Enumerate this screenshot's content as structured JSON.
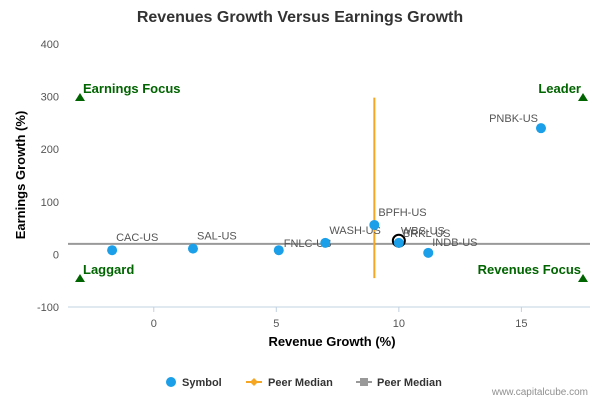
{
  "chart_data": {
    "type": "scatter",
    "title": "Revenues Growth Versus Earnings Growth",
    "xlabel": "Revenue Growth (%)",
    "ylabel": "Earnings Growth (%)",
    "xlim": [
      -3.5,
      17.8
    ],
    "ylim": [
      -100,
      400
    ],
    "xticks": [
      0,
      5,
      10,
      15
    ],
    "yticks": [
      -100,
      0,
      100,
      200,
      300,
      400
    ],
    "grid": false,
    "legend_position": "bottom",
    "series": [
      {
        "name": "Symbol",
        "color": "#1a9fe8",
        "points": [
          {
            "label": "CAC-US",
            "x": -1.7,
            "y": 8
          },
          {
            "label": "SAL-US",
            "x": 1.6,
            "y": 11
          },
          {
            "label": "FNLC-US",
            "x": 5.1,
            "y": 8
          },
          {
            "label": "WASH-US",
            "x": 7.0,
            "y": 22
          },
          {
            "label": "BPFH-US",
            "x": 9.0,
            "y": 56
          },
          {
            "label": "WBS-US",
            "x": 10.0,
            "y": 26,
            "highlight": true
          },
          {
            "label": "BRKL-US",
            "x": 10.0,
            "y": 22
          },
          {
            "label": "INDB-US",
            "x": 11.2,
            "y": 3
          },
          {
            "label": "PNBK-US",
            "x": 15.8,
            "y": 240
          }
        ]
      }
    ],
    "peer_median_vertical": {
      "name": "Peer Median",
      "x": 9.0,
      "y_from": -45,
      "y_to": 298,
      "color": "#f5a623"
    },
    "peer_median_horizontal": {
      "name": "Peer Median",
      "y": 20,
      "color": "#999999"
    },
    "quadrants": {
      "top_left": "Earnings Focus",
      "top_right": "Leader",
      "bottom_left": "Laggard",
      "bottom_right": "Revenues Focus"
    },
    "quadrant_marker_color": "#006400"
  },
  "credit": "www.capitalcube.com"
}
